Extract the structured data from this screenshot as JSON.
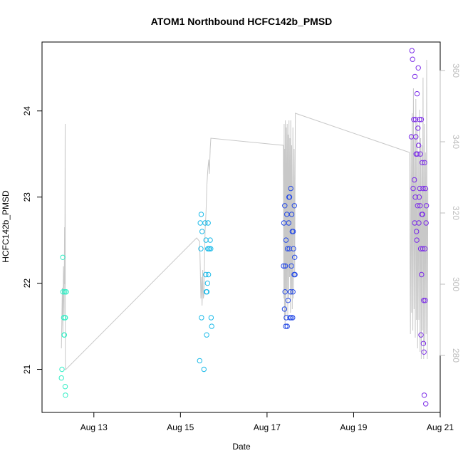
{
  "chart_data": {
    "type": "scatter",
    "title": "ATOM1 Northbound HCFC142b_PMSD",
    "xlabel": "Date",
    "ylabel": "HCFC142b_PMSD",
    "x_axis": {
      "range": [
        "2016-08-12T00:00",
        "2016-08-21T00:00"
      ],
      "ticks": [
        {
          "date": "2016-08-13T00:00",
          "label": "Aug 13"
        },
        {
          "date": "2016-08-15T00:00",
          "label": "Aug 15"
        },
        {
          "date": "2016-08-17T00:00",
          "label": "Aug 17"
        },
        {
          "date": "2016-08-19T00:00",
          "label": "Aug 19"
        },
        {
          "date": "2016-08-21T00:00",
          "label": "Aug 21"
        }
      ]
    },
    "y_axis_left": {
      "range": [
        20.5,
        24.8
      ],
      "ticks": [
        21,
        22,
        23,
        24
      ]
    },
    "y_axis_right": {
      "range": [
        264,
        368
      ],
      "ticks": [
        280,
        300,
        320,
        340,
        360
      ],
      "color": "#bdbdbd"
    },
    "colors": {
      "line": "#c8c8c8",
      "axis": "#000000",
      "right_axis": "#bdbdbd"
    },
    "grid": false,
    "series": [
      {
        "color": "#33eec6",
        "points": [
          [
            "2016-08-12T06:00",
            20.9
          ],
          [
            "2016-08-12T06:20",
            21.0
          ],
          [
            "2016-08-12T06:45",
            22.3
          ],
          [
            "2016-08-12T06:50",
            21.9
          ],
          [
            "2016-08-12T07:15",
            21.6
          ],
          [
            "2016-08-12T07:30",
            21.4
          ],
          [
            "2016-08-12T07:40",
            21.4
          ],
          [
            "2016-08-12T07:45",
            21.9
          ],
          [
            "2016-08-12T08:00",
            21.6
          ],
          [
            "2016-08-12T08:05",
            20.8
          ],
          [
            "2016-08-12T08:10",
            21.6
          ],
          [
            "2016-08-12T08:15",
            20.7
          ],
          [
            "2016-08-12T08:30",
            21.9
          ],
          [
            "2016-08-12T08:40",
            21.9
          ]
        ]
      },
      {
        "color": "#1ebbe9",
        "points": [
          [
            "2016-08-15T10:40",
            21.1
          ],
          [
            "2016-08-15T11:00",
            22.7
          ],
          [
            "2016-08-15T11:20",
            22.4
          ],
          [
            "2016-08-15T11:30",
            22.8
          ],
          [
            "2016-08-15T11:40",
            21.6
          ],
          [
            "2016-08-15T12:00",
            22.6
          ],
          [
            "2016-08-15T13:00",
            21.0
          ],
          [
            "2016-08-15T13:40",
            22.7
          ],
          [
            "2016-08-15T14:00",
            22.1
          ],
          [
            "2016-08-15T14:10",
            22.5
          ],
          [
            "2016-08-15T14:20",
            21.9
          ],
          [
            "2016-08-15T14:30",
            21.4
          ],
          [
            "2016-08-15T14:40",
            21.9
          ],
          [
            "2016-08-15T15:00",
            22.0
          ],
          [
            "2016-08-15T15:10",
            22.4
          ],
          [
            "2016-08-15T15:20",
            22.7
          ],
          [
            "2016-08-15T15:30",
            22.1
          ],
          [
            "2016-08-15T15:50",
            22.4
          ],
          [
            "2016-08-15T16:00",
            22.4
          ],
          [
            "2016-08-15T16:30",
            22.5
          ],
          [
            "2016-08-15T16:45",
            22.4
          ],
          [
            "2016-08-15T17:00",
            21.6
          ],
          [
            "2016-08-15T17:20",
            21.5
          ]
        ]
      },
      {
        "color": "#2449e6",
        "points": [
          [
            "2016-08-17T09:10",
            22.2
          ],
          [
            "2016-08-17T09:20",
            22.7
          ],
          [
            "2016-08-17T09:40",
            21.7
          ],
          [
            "2016-08-17T09:50",
            22.9
          ],
          [
            "2016-08-17T10:00",
            21.9
          ],
          [
            "2016-08-17T10:10",
            22.2
          ],
          [
            "2016-08-17T10:20",
            21.5
          ],
          [
            "2016-08-17T10:30",
            22.5
          ],
          [
            "2016-08-17T10:40",
            21.6
          ],
          [
            "2016-08-17T11:00",
            22.8
          ],
          [
            "2016-08-17T11:10",
            21.5
          ],
          [
            "2016-08-17T11:20",
            22.4
          ],
          [
            "2016-08-17T11:40",
            21.8
          ],
          [
            "2016-08-17T12:00",
            22.7
          ],
          [
            "2016-08-17T12:10",
            23.0
          ],
          [
            "2016-08-17T12:20",
            22.4
          ],
          [
            "2016-08-17T12:30",
            23.0
          ],
          [
            "2016-08-17T12:40",
            21.6
          ],
          [
            "2016-08-17T13:00",
            21.9
          ],
          [
            "2016-08-17T13:10",
            23.1
          ],
          [
            "2016-08-17T13:20",
            21.6
          ],
          [
            "2016-08-17T13:30",
            22.2
          ],
          [
            "2016-08-17T13:40",
            22.8
          ],
          [
            "2016-08-17T14:00",
            22.6
          ],
          [
            "2016-08-17T14:10",
            21.6
          ],
          [
            "2016-08-17T14:20",
            21.9
          ],
          [
            "2016-08-17T14:30",
            22.6
          ],
          [
            "2016-08-17T14:40",
            22.4
          ],
          [
            "2016-08-17T15:00",
            22.1
          ],
          [
            "2016-08-17T15:10",
            22.9
          ],
          [
            "2016-08-17T15:20",
            22.3
          ],
          [
            "2016-08-17T15:30",
            22.1
          ]
        ]
      },
      {
        "color": "#7b2be8",
        "points": [
          [
            "2016-08-20T08:00",
            23.7
          ],
          [
            "2016-08-20T08:20",
            24.7
          ],
          [
            "2016-08-20T08:40",
            24.6
          ],
          [
            "2016-08-20T09:00",
            23.1
          ],
          [
            "2016-08-20T09:20",
            23.9
          ],
          [
            "2016-08-20T09:40",
            23.2
          ],
          [
            "2016-08-20T09:50",
            22.7
          ],
          [
            "2016-08-20T10:00",
            24.4
          ],
          [
            "2016-08-20T10:10",
            23.0
          ],
          [
            "2016-08-20T10:20",
            23.9
          ],
          [
            "2016-08-20T10:30",
            23.7
          ],
          [
            "2016-08-20T10:40",
            23.5
          ],
          [
            "2016-08-20T10:50",
            22.6
          ],
          [
            "2016-08-20T11:00",
            22.5
          ],
          [
            "2016-08-20T11:10",
            24.2
          ],
          [
            "2016-08-20T11:20",
            23.5
          ],
          [
            "2016-08-20T11:30",
            22.9
          ],
          [
            "2016-08-20T11:40",
            23.8
          ],
          [
            "2016-08-20T11:50",
            24.5
          ],
          [
            "2016-08-20T12:00",
            23.6
          ],
          [
            "2016-08-20T12:10",
            22.7
          ],
          [
            "2016-08-20T12:20",
            23.0
          ],
          [
            "2016-08-20T12:30",
            23.9
          ],
          [
            "2016-08-20T12:40",
            23.1
          ],
          [
            "2016-08-20T12:50",
            22.9
          ],
          [
            "2016-08-20T13:00",
            23.5
          ],
          [
            "2016-08-20T13:10",
            22.4
          ],
          [
            "2016-08-20T13:20",
            21.4
          ],
          [
            "2016-08-20T13:30",
            23.9
          ],
          [
            "2016-08-20T13:40",
            22.1
          ],
          [
            "2016-08-20T13:50",
            22.8
          ],
          [
            "2016-08-20T14:00",
            23.4
          ],
          [
            "2016-08-20T14:10",
            22.8
          ],
          [
            "2016-08-20T14:20",
            22.4
          ],
          [
            "2016-08-20T14:30",
            23.1
          ],
          [
            "2016-08-20T14:40",
            21.3
          ],
          [
            "2016-08-20T14:50",
            21.8
          ],
          [
            "2016-08-20T15:00",
            21.2
          ],
          [
            "2016-08-20T15:10",
            20.7
          ],
          [
            "2016-08-20T15:20",
            23.4
          ],
          [
            "2016-08-20T15:30",
            22.4
          ],
          [
            "2016-08-20T15:40",
            21.8
          ],
          [
            "2016-08-20T15:50",
            23.1
          ],
          [
            "2016-08-20T16:00",
            20.6
          ],
          [
            "2016-08-20T16:10",
            22.7
          ],
          [
            "2016-08-20T16:20",
            22.9
          ]
        ]
      }
    ],
    "line_series": {
      "axis": "right",
      "points": [
        [
          "2016-08-12T06:00",
          282
        ],
        [
          "2016-08-12T06:30",
          299
        ],
        [
          "2016-08-12T06:50",
          286
        ],
        [
          "2016-08-12T07:10",
          305
        ],
        [
          "2016-08-12T07:30",
          291
        ],
        [
          "2016-08-12T07:45",
          316
        ],
        [
          "2016-08-12T07:55",
          300
        ],
        [
          "2016-08-12T08:05",
          345
        ],
        [
          "2016-08-12T08:10",
          276
        ],
        [
          "2016-08-12T08:20",
          276
        ],
        [
          "2016-08-15T09:00",
          313
        ],
        [
          "2016-08-15T10:40",
          312
        ],
        [
          "2016-08-15T11:00",
          304
        ],
        [
          "2016-08-15T11:20",
          296
        ],
        [
          "2016-08-15T11:40",
          302
        ],
        [
          "2016-08-15T12:00",
          294
        ],
        [
          "2016-08-15T12:20",
          304
        ],
        [
          "2016-08-15T12:40",
          296
        ],
        [
          "2016-08-15T13:00",
          297
        ],
        [
          "2016-08-15T13:20",
          306
        ],
        [
          "2016-08-15T13:40",
          315
        ],
        [
          "2016-08-15T14:10",
          320
        ],
        [
          "2016-08-15T14:40",
          328
        ],
        [
          "2016-08-15T15:10",
          332
        ],
        [
          "2016-08-15T15:40",
          335
        ],
        [
          "2016-08-15T16:00",
          331
        ],
        [
          "2016-08-15T16:30",
          338
        ],
        [
          "2016-08-15T16:50",
          341
        ],
        [
          "2016-08-17T09:00",
          339
        ],
        [
          "2016-08-17T09:20",
          296
        ],
        [
          "2016-08-17T09:30",
          345
        ],
        [
          "2016-08-17T09:40",
          290
        ],
        [
          "2016-08-17T09:50",
          338
        ],
        [
          "2016-08-17T10:00",
          288
        ],
        [
          "2016-08-17T10:10",
          346
        ],
        [
          "2016-08-17T10:30",
          291
        ],
        [
          "2016-08-17T10:40",
          344
        ],
        [
          "2016-08-17T11:00",
          298
        ],
        [
          "2016-08-17T11:10",
          345
        ],
        [
          "2016-08-17T11:30",
          291
        ],
        [
          "2016-08-17T11:40",
          342
        ],
        [
          "2016-08-17T12:00",
          296
        ],
        [
          "2016-08-17T12:10",
          346
        ],
        [
          "2016-08-17T12:30",
          302
        ],
        [
          "2016-08-17T12:40",
          341
        ],
        [
          "2016-08-17T13:00",
          292
        ],
        [
          "2016-08-17T13:10",
          346
        ],
        [
          "2016-08-17T13:30",
          297
        ],
        [
          "2016-08-17T13:40",
          339
        ],
        [
          "2016-08-17T14:00",
          293
        ],
        [
          "2016-08-17T14:20",
          344
        ],
        [
          "2016-08-17T14:40",
          296
        ],
        [
          "2016-08-17T15:00",
          338
        ],
        [
          "2016-08-17T15:20",
          302
        ],
        [
          "2016-08-17T15:40",
          348
        ],
        [
          "2016-08-20T07:00",
          337
        ],
        [
          "2016-08-20T07:30",
          286
        ],
        [
          "2016-08-20T07:50",
          342
        ],
        [
          "2016-08-20T08:10",
          292
        ],
        [
          "2016-08-20T08:30",
          348
        ],
        [
          "2016-08-20T08:50",
          287
        ],
        [
          "2016-08-20T09:10",
          355
        ],
        [
          "2016-08-20T09:30",
          293
        ],
        [
          "2016-08-20T09:50",
          341
        ],
        [
          "2016-08-20T10:10",
          285
        ],
        [
          "2016-08-20T10:30",
          352
        ],
        [
          "2016-08-20T10:50",
          290
        ],
        [
          "2016-08-20T11:10",
          346
        ],
        [
          "2016-08-20T11:30",
          282
        ],
        [
          "2016-08-20T11:50",
          336
        ],
        [
          "2016-08-20T12:10",
          290
        ],
        [
          "2016-08-20T12:30",
          349
        ],
        [
          "2016-08-20T12:50",
          281
        ],
        [
          "2016-08-20T13:10",
          341
        ],
        [
          "2016-08-20T13:30",
          279
        ],
        [
          "2016-08-20T13:50",
          339
        ],
        [
          "2016-08-20T14:10",
          287
        ],
        [
          "2016-08-20T14:30",
          358
        ],
        [
          "2016-08-20T14:50",
          279
        ],
        [
          "2016-08-20T15:10",
          345
        ],
        [
          "2016-08-20T15:30",
          283
        ],
        [
          "2016-08-20T15:50",
          337
        ],
        [
          "2016-08-20T16:10",
          286
        ],
        [
          "2016-08-20T16:30",
          363
        ],
        [
          "2016-08-20T16:50",
          279
        ],
        [
          "2016-08-20T17:10",
          327
        ]
      ]
    }
  }
}
